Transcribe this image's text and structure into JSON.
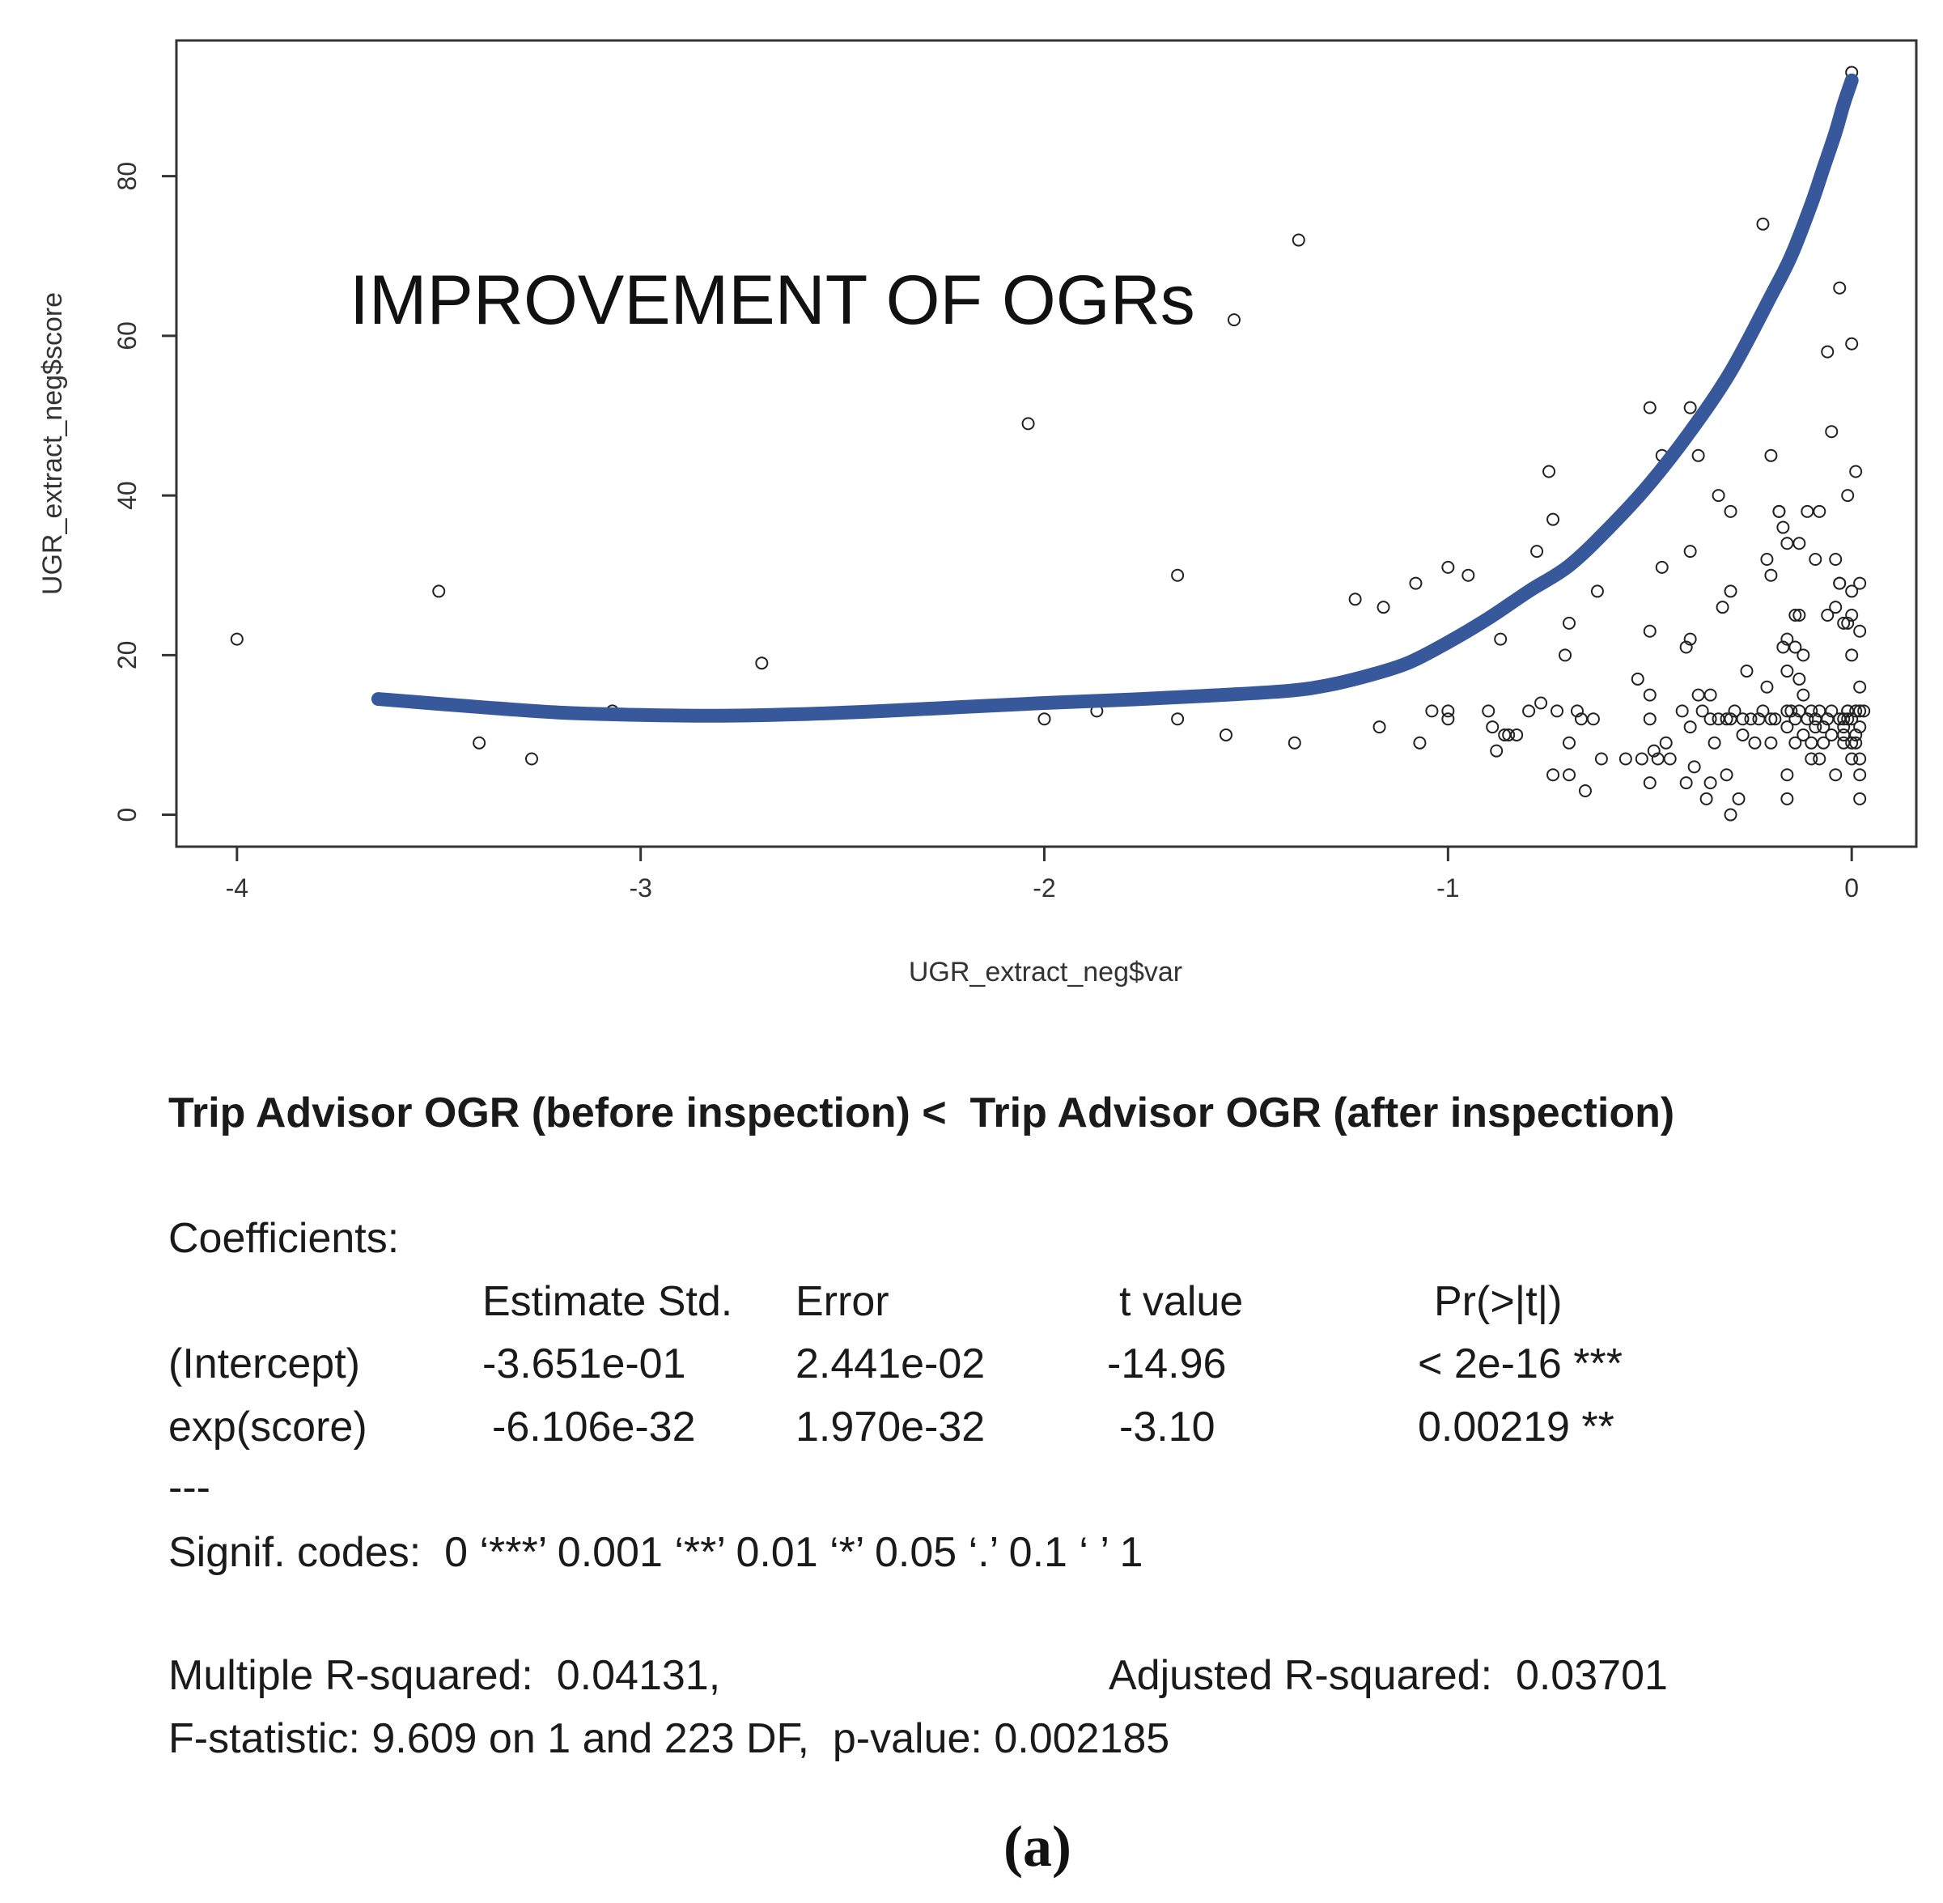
{
  "chart_data": {
    "type": "scatter",
    "xlabel": "UGR_extract_neg$var",
    "ylabel": "UGR_extract_neg$score",
    "xlim": [
      -4.15,
      0.16
    ],
    "ylim": [
      -4,
      97
    ],
    "xticks": [
      -4,
      -3,
      -2,
      -1,
      0
    ],
    "yticks": [
      0,
      20,
      40,
      60,
      80
    ],
    "annotation": "IMPROVEMENT OF OGRs",
    "points": [
      [
        -4.0,
        22
      ],
      [
        -3.5,
        28
      ],
      [
        -3.4,
        9
      ],
      [
        -3.27,
        7
      ],
      [
        -3.07,
        13
      ],
      [
        -2.7,
        19
      ],
      [
        -2.04,
        49
      ],
      [
        -2.0,
        12
      ],
      [
        -1.87,
        13
      ],
      [
        -1.67,
        30
      ],
      [
        -1.67,
        12
      ],
      [
        -1.55,
        10
      ],
      [
        -1.53,
        62
      ],
      [
        -1.38,
        9
      ],
      [
        -1.37,
        72
      ],
      [
        -1.23,
        27
      ],
      [
        -1.17,
        11
      ],
      [
        -1.16,
        26
      ],
      [
        -1.08,
        29
      ],
      [
        -1.07,
        9
      ],
      [
        -1.04,
        13
      ],
      [
        -1.0,
        31
      ],
      [
        -1.0,
        13
      ],
      [
        -1.0,
        12
      ],
      [
        -0.95,
        30
      ],
      [
        -0.9,
        13
      ],
      [
        -0.89,
        11
      ],
      [
        -0.88,
        8
      ],
      [
        -0.87,
        22
      ],
      [
        -0.86,
        10
      ],
      [
        -0.85,
        10
      ],
      [
        -0.83,
        10
      ],
      [
        -0.8,
        13
      ],
      [
        -0.78,
        33
      ],
      [
        -0.77,
        14
      ],
      [
        -0.75,
        43
      ],
      [
        -0.74,
        37
      ],
      [
        -0.74,
        5
      ],
      [
        -0.73,
        13
      ],
      [
        -0.71,
        20
      ],
      [
        -0.7,
        24
      ],
      [
        -0.7,
        9
      ],
      [
        -0.7,
        5
      ],
      [
        -0.68,
        13
      ],
      [
        -0.67,
        12
      ],
      [
        -0.66,
        3
      ],
      [
        -0.64,
        12
      ],
      [
        -0.63,
        28
      ],
      [
        -0.62,
        7
      ],
      [
        -0.56,
        7
      ],
      [
        -0.53,
        17
      ],
      [
        -0.52,
        7
      ],
      [
        -0.5,
        51
      ],
      [
        -0.5,
        23
      ],
      [
        -0.5,
        15
      ],
      [
        -0.5,
        12
      ],
      [
        -0.5,
        4
      ],
      [
        -0.49,
        8
      ],
      [
        -0.48,
        7
      ],
      [
        -0.47,
        31
      ],
      [
        -0.47,
        45
      ],
      [
        -0.46,
        9
      ],
      [
        -0.45,
        7
      ],
      [
        -0.42,
        13
      ],
      [
        -0.41,
        21
      ],
      [
        -0.41,
        4
      ],
      [
        -0.4,
        51
      ],
      [
        -0.4,
        33
      ],
      [
        -0.4,
        22
      ],
      [
        -0.4,
        11
      ],
      [
        -0.39,
        6
      ],
      [
        -0.38,
        45
      ],
      [
        -0.38,
        15
      ],
      [
        -0.37,
        13
      ],
      [
        -0.36,
        2
      ],
      [
        -0.35,
        15
      ],
      [
        -0.35,
        12
      ],
      [
        -0.35,
        4
      ],
      [
        -0.34,
        9
      ],
      [
        -0.33,
        40
      ],
      [
        -0.33,
        12
      ],
      [
        -0.32,
        26
      ],
      [
        -0.31,
        12
      ],
      [
        -0.31,
        5
      ],
      [
        -0.3,
        0
      ],
      [
        -0.3,
        28
      ],
      [
        -0.3,
        38
      ],
      [
        -0.3,
        12
      ],
      [
        -0.29,
        13
      ],
      [
        -0.28,
        2
      ],
      [
        -0.27,
        10
      ],
      [
        -0.27,
        12
      ],
      [
        -0.26,
        18
      ],
      [
        -0.25,
        12
      ],
      [
        -0.24,
        9
      ],
      [
        -0.23,
        12
      ],
      [
        -0.22,
        74
      ],
      [
        -0.22,
        13
      ],
      [
        -0.21,
        16
      ],
      [
        -0.21,
        32
      ],
      [
        -0.2,
        45
      ],
      [
        -0.2,
        30
      ],
      [
        -0.2,
        12
      ],
      [
        -0.2,
        9
      ],
      [
        -0.19,
        12
      ],
      [
        -0.18,
        38
      ],
      [
        -0.18,
        38
      ],
      [
        -0.17,
        36
      ],
      [
        -0.17,
        21
      ],
      [
        -0.16,
        34
      ],
      [
        -0.16,
        22
      ],
      [
        -0.16,
        18
      ],
      [
        -0.16,
        13
      ],
      [
        -0.16,
        11
      ],
      [
        -0.16,
        5
      ],
      [
        -0.16,
        2
      ],
      [
        -0.15,
        13
      ],
      [
        -0.14,
        25
      ],
      [
        -0.14,
        21
      ],
      [
        -0.14,
        12
      ],
      [
        -0.14,
        9
      ],
      [
        -0.13,
        13
      ],
      [
        -0.13,
        17
      ],
      [
        -0.13,
        34
      ],
      [
        -0.13,
        25
      ],
      [
        -0.12,
        20
      ],
      [
        -0.12,
        10
      ],
      [
        -0.12,
        15
      ],
      [
        -0.11,
        38
      ],
      [
        -0.11,
        12
      ],
      [
        -0.1,
        13
      ],
      [
        -0.1,
        7
      ],
      [
        -0.1,
        9
      ],
      [
        -0.09,
        12
      ],
      [
        -0.09,
        11
      ],
      [
        -0.09,
        32
      ],
      [
        -0.08,
        7
      ],
      [
        -0.08,
        13
      ],
      [
        -0.08,
        38
      ],
      [
        -0.07,
        11
      ],
      [
        -0.07,
        9
      ],
      [
        -0.06,
        25
      ],
      [
        -0.06,
        12
      ],
      [
        -0.06,
        58
      ],
      [
        -0.05,
        48
      ],
      [
        -0.05,
        13
      ],
      [
        -0.05,
        10
      ],
      [
        -0.04,
        5
      ],
      [
        -0.04,
        26
      ],
      [
        -0.04,
        32
      ],
      [
        -0.03,
        12
      ],
      [
        -0.03,
        66
      ],
      [
        -0.03,
        29
      ],
      [
        -0.02,
        12
      ],
      [
        -0.02,
        11
      ],
      [
        -0.02,
        10
      ],
      [
        -0.01,
        12
      ],
      [
        -0.01,
        13
      ],
      [
        0.0,
        7
      ],
      [
        -0.02,
        9
      ],
      [
        -0.03,
        29
      ],
      [
        -0.02,
        24
      ],
      [
        -0.01,
        24
      ],
      [
        -0.01,
        40
      ],
      [
        -0.01,
        13
      ],
      [
        0.0,
        20
      ],
      [
        0.0,
        28
      ],
      [
        0.0,
        59
      ],
      [
        0.0,
        12
      ],
      [
        0.0,
        9
      ],
      [
        0.0,
        25
      ],
      [
        0.01,
        43
      ],
      [
        0.01,
        10
      ],
      [
        0.01,
        13
      ],
      [
        0.01,
        9
      ],
      [
        0.02,
        29
      ],
      [
        0.02,
        16
      ],
      [
        0.02,
        23
      ],
      [
        0.02,
        13
      ],
      [
        0.02,
        11
      ],
      [
        0.02,
        7
      ],
      [
        0.02,
        5
      ],
      [
        0.02,
        2
      ],
      [
        0.03,
        13
      ],
      [
        0.0,
        93
      ]
    ],
    "fit_line": {
      "x": [
        -3.65,
        -3.4,
        -3.2,
        -3.0,
        -2.8,
        -2.6,
        -2.4,
        -2.2,
        -2.0,
        -1.8,
        -1.6,
        -1.4,
        -1.3,
        -1.2,
        -1.1,
        -1.0,
        -0.9,
        -0.8,
        -0.7,
        -0.6,
        -0.5,
        -0.4,
        -0.3,
        -0.2,
        -0.15,
        -0.1,
        -0.07,
        -0.04,
        -0.02,
        0.0
      ],
      "y": [
        14.5,
        13.5,
        12.8,
        12.5,
        12.4,
        12.6,
        13.0,
        13.5,
        14.0,
        14.4,
        14.9,
        15.5,
        16.2,
        17.4,
        19.0,
        21.6,
        24.6,
        28.0,
        31.2,
        36.0,
        41.5,
        48.0,
        55.5,
        65.0,
        70.0,
        76.5,
        81.0,
        85.5,
        89.0,
        92.0
      ],
      "color": "#37589a"
    }
  },
  "text": {
    "comparison": "Trip Advisor OGR (before inspection) <  Trip Advisor OGR (after inspection)",
    "coef_heading": "Coefficients:",
    "col_headers": [
      "Estimate Std.",
      "Error",
      "t value",
      "Pr(>|t|)"
    ],
    "rows": [
      {
        "name": "(Intercept)",
        "estimate": "-3.651e-01",
        "error": "2.441e-02",
        "t": "-14.96",
        "p": "< 2e-16 ***"
      },
      {
        "name": "exp(score)",
        "estimate": "-6.106e-32",
        "error": "1.970e-32",
        "t": "-3.10",
        "p": "0.00219 **"
      }
    ],
    "separator": "---",
    "signif": "Signif. codes:  0 ‘***’ 0.001 ‘**’ 0.01 ‘*’ 0.05 ‘.’ 0.1 ‘ ’ 1",
    "multiple_r": "Multiple R-squared:  0.04131,",
    "adjusted_r": "Adjusted R-squared:  0.03701",
    "fstat": "F-statistic: 9.609 on 1 and 223 DF,  p-value: 0.002185",
    "caption": "(a)"
  }
}
